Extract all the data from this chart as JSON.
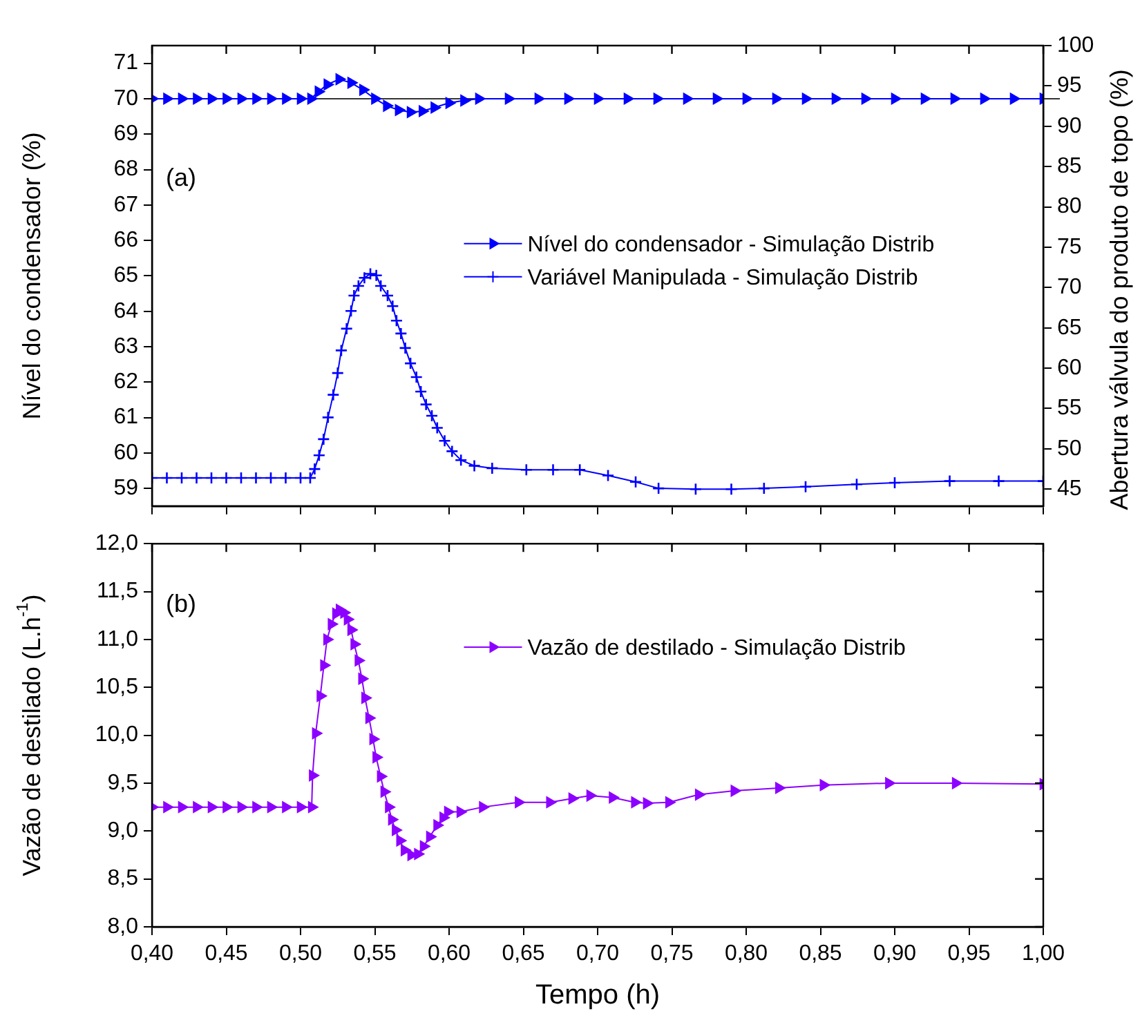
{
  "chart_data": [
    {
      "type": "line",
      "ylabel": "Nível do condensador (%)",
      "y2label": "Abertura válvula do produto de topo (%)",
      "annotations": [
        "(a)"
      ],
      "legend": "right",
      "grid": false,
      "tick_labels": "y",
      "xlim": [
        0.4,
        1.0
      ],
      "xticks": [
        {
          "value": 0.4,
          "label": null
        },
        {
          "value": 0.45,
          "label": null
        },
        {
          "value": 0.5,
          "label": null
        },
        {
          "value": 0.55,
          "label": null
        },
        {
          "value": 0.6,
          "label": null
        },
        {
          "value": 0.65,
          "label": null
        },
        {
          "value": 0.7,
          "label": null
        },
        {
          "value": 0.75,
          "label": null
        },
        {
          "value": 0.8,
          "label": null
        },
        {
          "value": 0.85,
          "label": null
        },
        {
          "value": 0.9,
          "label": null
        },
        {
          "value": 0.95,
          "label": null
        },
        {
          "value": 1.0,
          "label": null
        }
      ],
      "ylim": [
        58.5,
        71.5
      ],
      "yticks": [
        59,
        60,
        61,
        62,
        63,
        64,
        65,
        66,
        67,
        68,
        69,
        70,
        71
      ],
      "y2lim": [
        42.9,
        100
      ],
      "y2ticks": [
        45,
        50,
        55,
        60,
        65,
        70,
        75,
        80,
        85,
        90,
        95,
        100
      ],
      "ref_lines": [
        {
          "axis": "y",
          "value": 70,
          "color": "#333333"
        }
      ],
      "series": [
        {
          "name": "Nível do condensador - Simulação Distrib",
          "color": "#0000ff",
          "marker": "triangle",
          "axis": "y",
          "x": [
            0.4,
            0.41,
            0.42,
            0.43,
            0.44,
            0.45,
            0.46,
            0.47,
            0.48,
            0.49,
            0.5,
            0.507,
            0.512,
            0.518,
            0.526,
            0.534,
            0.542,
            0.55,
            0.558,
            0.566,
            0.574,
            0.582,
            0.59,
            0.6,
            0.61,
            0.62,
            0.64,
            0.66,
            0.68,
            0.7,
            0.72,
            0.74,
            0.76,
            0.78,
            0.8,
            0.82,
            0.84,
            0.86,
            0.88,
            0.9,
            0.92,
            0.94,
            0.96,
            0.98,
            1.0
          ],
          "values": [
            70,
            70,
            70,
            70,
            70,
            70,
            70,
            70,
            70,
            70,
            70,
            70,
            70.2,
            70.4,
            70.55,
            70.45,
            70.25,
            70,
            69.8,
            69.68,
            69.62,
            69.65,
            69.75,
            69.88,
            69.95,
            70,
            70,
            70,
            70,
            70,
            70,
            70,
            70,
            70,
            70,
            70,
            70,
            70,
            70,
            70,
            70,
            70,
            70,
            70,
            70
          ]
        },
        {
          "name": "Variável Manipulada - Simulação Distrib",
          "color": "#0000ff",
          "marker": "cross",
          "axis": "y2",
          "x": [
            0.4,
            0.41,
            0.42,
            0.43,
            0.44,
            0.45,
            0.46,
            0.47,
            0.48,
            0.49,
            0.5,
            0.5065,
            0.5095,
            0.5125,
            0.5155,
            0.5185,
            0.522,
            0.525,
            0.5274,
            0.531,
            0.534,
            0.536,
            0.539,
            0.543,
            0.547,
            0.551,
            0.554,
            0.5586,
            0.562,
            0.5646,
            0.5676,
            0.5705,
            0.574,
            0.578,
            0.581,
            0.5845,
            0.5884,
            0.592,
            0.597,
            0.602,
            0.608,
            0.617,
            0.629,
            0.652,
            0.67,
            0.688,
            0.707,
            0.7256,
            0.741,
            0.766,
            0.79,
            0.812,
            0.84,
            0.8744,
            0.9,
            0.937,
            0.97,
            1.0
          ],
          "values": [
            46.4,
            46.4,
            46.4,
            46.4,
            46.4,
            46.4,
            46.4,
            46.4,
            46.4,
            46.4,
            46.4,
            46.4,
            47.5,
            49.2,
            51.2,
            53.9,
            56.7,
            59.4,
            62.2,
            64.9,
            67.1,
            69.0,
            70.2,
            71.2,
            71.7,
            71.5,
            70.2,
            69.0,
            67.7,
            65.9,
            64.3,
            62.5,
            60.6,
            58.9,
            57.1,
            55.5,
            54.1,
            52.6,
            51.0,
            49.7,
            48.6,
            47.9,
            47.6,
            47.4,
            47.4,
            47.4,
            46.7,
            45.9,
            45.1,
            45.0,
            45.0,
            45.1,
            45.3,
            45.6,
            45.8,
            46.0,
            46.0,
            46.0
          ]
        }
      ]
    },
    {
      "type": "line",
      "xlabel": "Tempo (h)",
      "ylabel": "Vazão de destilado (L.h$^{-1}$)",
      "annotations": [
        "(b)"
      ],
      "legend": "top right",
      "grid": false,
      "xlim": [
        0.4,
        1.0
      ],
      "xticks": [
        {
          "value": 0.4,
          "label": "0,40"
        },
        {
          "value": 0.45,
          "label": "0,45"
        },
        {
          "value": 0.5,
          "label": "0,50"
        },
        {
          "value": 0.55,
          "label": "0,55"
        },
        {
          "value": 0.6,
          "label": "0,60"
        },
        {
          "value": 0.65,
          "label": "0,65"
        },
        {
          "value": 0.7,
          "label": "0,70"
        },
        {
          "value": 0.75,
          "label": "0,75"
        },
        {
          "value": 0.8,
          "label": "0,80"
        },
        {
          "value": 0.85,
          "label": "0,85"
        },
        {
          "value": 0.9,
          "label": "0,90"
        },
        {
          "value": 0.95,
          "label": "0,95"
        },
        {
          "value": 1.0,
          "label": "1,00"
        }
      ],
      "ylim": [
        8.0,
        12.0
      ],
      "yticks": [
        {
          "value": 8.0,
          "label": "8,0"
        },
        {
          "value": 8.5,
          "label": "8,5"
        },
        {
          "value": 9.0,
          "label": "9,0"
        },
        {
          "value": 9.5,
          "label": "9,5"
        },
        {
          "value": 10.0,
          "label": "10,0"
        },
        {
          "value": 10.5,
          "label": "10,5"
        },
        {
          "value": 11.0,
          "label": "11,0"
        },
        {
          "value": 11.5,
          "label": "11,5"
        },
        {
          "value": 12.0,
          "label": "12,0"
        }
      ],
      "series": [
        {
          "name": "Vazão de destilado - Simulação Distrib",
          "color": "#8c00ff",
          "marker": "triangle",
          "x": [
            0.4,
            0.41,
            0.42,
            0.43,
            0.44,
            0.45,
            0.46,
            0.47,
            0.48,
            0.49,
            0.5,
            0.5075,
            0.5081,
            0.5102,
            0.5133,
            0.5157,
            0.5178,
            0.5208,
            0.5238,
            0.5262,
            0.5292,
            0.5316,
            0.534,
            0.5361,
            0.5389,
            0.5413,
            0.5434,
            0.5461,
            0.5488,
            0.5509,
            0.5539,
            0.5563,
            0.5593,
            0.5614,
            0.5639,
            0.5669,
            0.5699,
            0.5744,
            0.5789,
            0.5828,
            0.587,
            0.5919,
            0.596,
            0.5991,
            0.6075,
            0.6226,
            0.6467,
            0.6678,
            0.6828,
            0.6949,
            0.71,
            0.725,
            0.733,
            0.748,
            0.768,
            0.792,
            0.822,
            0.852,
            0.896,
            0.941,
            1.0
          ],
          "values": [
            9.25,
            9.25,
            9.25,
            9.25,
            9.25,
            9.25,
            9.25,
            9.25,
            9.25,
            9.25,
            9.25,
            9.25,
            9.58,
            10.02,
            10.41,
            10.73,
            11.0,
            11.16,
            11.27,
            11.31,
            11.28,
            11.21,
            11.1,
            10.95,
            10.78,
            10.59,
            10.39,
            10.18,
            9.96,
            9.77,
            9.57,
            9.41,
            9.25,
            9.12,
            9.01,
            8.9,
            8.8,
            8.75,
            8.76,
            8.84,
            8.94,
            9.06,
            9.14,
            9.2,
            9.2,
            9.25,
            9.3,
            9.3,
            9.34,
            9.37,
            9.35,
            9.3,
            9.29,
            9.3,
            9.38,
            9.42,
            9.45,
            9.48,
            9.5,
            9.5,
            9.49
          ]
        }
      ]
    }
  ]
}
